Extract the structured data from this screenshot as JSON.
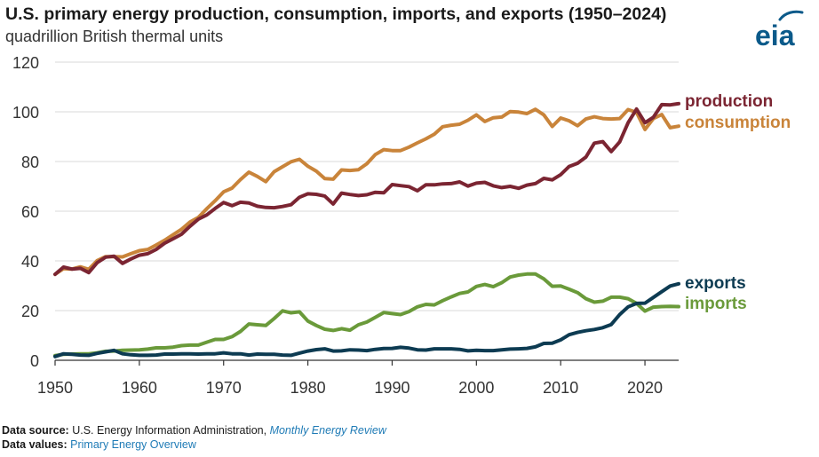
{
  "title": "U.S. primary energy production, consumption, imports, and exports (1950–2024)",
  "subtitle": "quadrillion British thermal units",
  "logo_text": "eia",
  "footer": {
    "source_label": "Data source:",
    "source_text": "U.S. Energy Information Administration,",
    "source_link": "Monthly Energy Review",
    "values_label": "Data values:",
    "values_link": "Primary Energy Overview"
  },
  "colors": {
    "production": "#7b2532",
    "consumption": "#c9843a",
    "exports": "#0d3b52",
    "imports": "#6a9a3a",
    "grid": "#d9d9d9",
    "axis": "#333333",
    "logo": "#0b5a8a"
  },
  "chart_data": {
    "type": "line",
    "xlim": [
      1950,
      2024
    ],
    "ylim": [
      0,
      120
    ],
    "x_ticks": [
      "1950",
      "1960",
      "1970",
      "1980",
      "1990",
      "2000",
      "2010",
      "2020"
    ],
    "y_ticks": [
      "0",
      "20",
      "40",
      "60",
      "80",
      "100",
      "120"
    ],
    "grid": true,
    "legend": "direct labels at right end of lines",
    "years": [
      1950,
      1951,
      1952,
      1953,
      1954,
      1955,
      1956,
      1957,
      1958,
      1959,
      1960,
      1961,
      1962,
      1963,
      1964,
      1965,
      1966,
      1967,
      1968,
      1969,
      1970,
      1971,
      1972,
      1973,
      1974,
      1975,
      1976,
      1977,
      1978,
      1979,
      1980,
      1981,
      1982,
      1983,
      1984,
      1985,
      1986,
      1987,
      1988,
      1989,
      1990,
      1991,
      1992,
      1993,
      1994,
      1995,
      1996,
      1997,
      1998,
      1999,
      2000,
      2001,
      2002,
      2003,
      2004,
      2005,
      2006,
      2007,
      2008,
      2009,
      2010,
      2011,
      2012,
      2013,
      2014,
      2015,
      2016,
      2017,
      2018,
      2019,
      2020,
      2021,
      2022,
      2023,
      2024
    ],
    "series": [
      {
        "name": "production",
        "key": "production",
        "values": [
          34.6,
          37.5,
          36.7,
          37.0,
          35.3,
          39.3,
          41.5,
          41.9,
          39.0,
          40.8,
          42.3,
          42.9,
          44.6,
          47.1,
          48.9,
          50.7,
          53.9,
          56.8,
          58.5,
          61.1,
          63.5,
          62.2,
          63.6,
          63.3,
          62.0,
          61.5,
          61.4,
          61.9,
          62.6,
          65.6,
          67.0,
          66.8,
          66.1,
          62.9,
          67.3,
          66.7,
          66.3,
          66.6,
          67.6,
          67.4,
          70.7,
          70.3,
          69.9,
          68.2,
          70.6,
          70.6,
          71.0,
          71.1,
          71.8,
          70.1,
          71.3,
          71.6,
          70.2,
          69.5,
          70.0,
          69.2,
          70.5,
          71.1,
          73.2,
          72.6,
          74.7,
          78.0,
          79.3,
          81.8,
          87.4,
          88.0,
          84.0,
          87.9,
          95.6,
          101.1,
          95.6,
          97.8,
          102.9,
          102.8,
          103.3
        ]
      },
      {
        "name": "consumption",
        "key": "consumption",
        "values": [
          34.6,
          36.9,
          36.7,
          37.6,
          36.6,
          40.1,
          41.7,
          41.7,
          41.6,
          42.9,
          44.1,
          44.6,
          46.4,
          48.3,
          50.5,
          52.7,
          55.6,
          57.5,
          61.0,
          64.2,
          67.8,
          69.3,
          72.7,
          75.7,
          74.0,
          71.9,
          75.9,
          77.9,
          79.9,
          80.9,
          78.1,
          76.1,
          73.1,
          72.9,
          76.6,
          76.4,
          76.7,
          79.1,
          82.8,
          84.8,
          84.4,
          84.4,
          85.8,
          87.5,
          89.1,
          91.0,
          94.0,
          94.6,
          95.0,
          96.6,
          98.8,
          96.1,
          97.6,
          97.9,
          100.1,
          99.9,
          99.3,
          101.0,
          98.8,
          94.1,
          97.5,
          96.4,
          94.4,
          97.1,
          98.0,
          97.3,
          97.1,
          97.3,
          100.9,
          99.8,
          92.9,
          97.3,
          98.9,
          93.6,
          94.2
        ]
      },
      {
        "name": "exports",
        "key": "exports",
        "values": [
          1.5,
          2.6,
          2.4,
          2.1,
          2.0,
          2.8,
          3.4,
          4.0,
          2.6,
          2.2,
          2.0,
          2.0,
          2.1,
          2.5,
          2.5,
          2.6,
          2.6,
          2.5,
          2.6,
          2.6,
          3.0,
          2.6,
          2.6,
          2.1,
          2.5,
          2.4,
          2.4,
          2.1,
          2.0,
          2.9,
          3.7,
          4.3,
          4.6,
          3.7,
          3.8,
          4.2,
          4.1,
          3.9,
          4.4,
          4.7,
          4.8,
          5.2,
          4.9,
          4.2,
          4.1,
          4.6,
          4.6,
          4.6,
          4.4,
          3.8,
          4.0,
          3.9,
          3.9,
          4.2,
          4.5,
          4.6,
          4.8,
          5.4,
          6.8,
          6.9,
          8.2,
          10.3,
          11.2,
          11.9,
          12.4,
          13.1,
          14.4,
          18.4,
          21.5,
          22.9,
          23.0,
          25.3,
          27.6,
          29.9,
          30.8
        ]
      },
      {
        "name": "imports",
        "key": "imports",
        "values": [
          1.9,
          2.4,
          2.5,
          2.6,
          2.6,
          3.0,
          3.6,
          3.7,
          4.0,
          4.1,
          4.2,
          4.5,
          5.0,
          5.0,
          5.3,
          5.9,
          6.1,
          6.1,
          7.3,
          8.4,
          8.4,
          9.5,
          11.6,
          14.6,
          14.3,
          14.0,
          16.8,
          19.9,
          19.1,
          19.5,
          15.8,
          14.0,
          12.5,
          12.0,
          12.7,
          12.1,
          14.3,
          15.4,
          17.3,
          19.2,
          18.8,
          18.4,
          19.6,
          21.5,
          22.5,
          22.3,
          24.0,
          25.5,
          26.9,
          27.5,
          29.7,
          30.5,
          29.6,
          31.2,
          33.5,
          34.3,
          34.7,
          34.7,
          32.8,
          29.8,
          29.9,
          28.6,
          27.2,
          24.8,
          23.4,
          23.8,
          25.4,
          25.4,
          24.8,
          22.9,
          19.8,
          21.4,
          21.6,
          21.7,
          21.6
        ]
      }
    ]
  }
}
